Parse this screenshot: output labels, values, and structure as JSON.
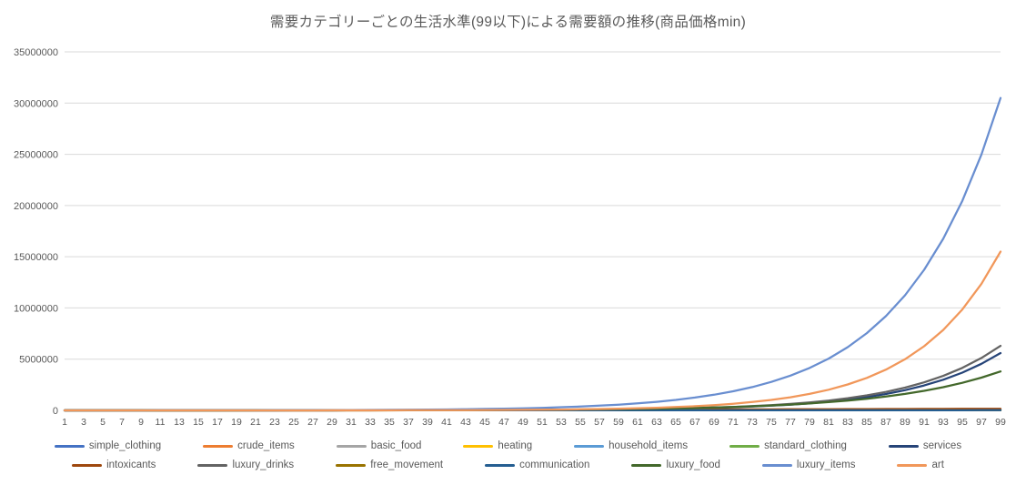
{
  "title": "需要カテゴリーごとの生活水準(99以下)による需要額の推移(商品価格min)",
  "colors": {
    "background": "#ffffff",
    "title_text": "#595959",
    "axis_text": "#595959",
    "gridline": "#d9d9d9",
    "axis_line": "#bfbfbf"
  },
  "chart_data": {
    "type": "line",
    "title": "需要カテゴリーごとの生活水準(99以下)による需要額の推移(商品価格min)",
    "xlabel": "",
    "ylabel": "",
    "ylim": [
      0,
      35000000
    ],
    "yticks": [
      0,
      5000000,
      10000000,
      15000000,
      20000000,
      25000000,
      30000000,
      35000000
    ],
    "grid": "horizontal",
    "legend_position": "bottom-two-rows",
    "x": [
      1,
      3,
      5,
      7,
      9,
      11,
      13,
      15,
      17,
      19,
      21,
      23,
      25,
      27,
      29,
      31,
      33,
      35,
      37,
      39,
      41,
      43,
      45,
      47,
      49,
      51,
      53,
      55,
      57,
      59,
      61,
      63,
      65,
      67,
      69,
      71,
      73,
      75,
      77,
      79,
      81,
      83,
      85,
      87,
      89,
      91,
      93,
      95,
      97,
      99
    ],
    "series": [
      {
        "name": "simple_clothing",
        "color": "#4472C4",
        "legend_row": 1,
        "values": [
          2000,
          2500,
          3000,
          3500,
          4000,
          4500,
          5000,
          5500,
          6000,
          6500,
          7000,
          7500,
          8000,
          8500,
          9000,
          9500,
          10000,
          10500,
          11000,
          11500,
          12000,
          12500,
          13000,
          13500,
          14000,
          14500,
          15000,
          15500,
          16000,
          16500,
          17000,
          17500,
          18000,
          18500,
          19000,
          19500,
          20000,
          20500,
          21000,
          21500,
          22000,
          22500,
          23000,
          23500,
          24000,
          24500,
          25000,
          25500,
          26000,
          26500
        ]
      },
      {
        "name": "crude_items",
        "color": "#ED7D31",
        "legend_row": 1,
        "values": [
          1000,
          1400,
          1800,
          2200,
          2600,
          3000,
          3400,
          3800,
          4200,
          4600,
          5000,
          5400,
          5800,
          6200,
          6600,
          7000,
          7400,
          7800,
          8200,
          8600,
          9000,
          9400,
          9800,
          10200,
          10600,
          11000,
          11400,
          11800,
          12200,
          12600,
          13000,
          13400,
          13800,
          14200,
          14600,
          15000,
          15400,
          15800,
          16200,
          16600,
          17000,
          17400,
          17800,
          18200,
          18600,
          19000,
          19400,
          19800,
          20200,
          20600
        ]
      },
      {
        "name": "basic_food",
        "color": "#A5A5A5",
        "legend_row": 1,
        "values": [
          3000,
          3500,
          4000,
          4500,
          5000,
          5500,
          6000,
          6500,
          7000,
          7500,
          8000,
          8500,
          9000,
          9500,
          10000,
          10500,
          11000,
          11500,
          12000,
          12500,
          13000,
          13500,
          14000,
          14500,
          15000,
          15500,
          16000,
          16500,
          17000,
          17500,
          18000,
          18500,
          19000,
          19500,
          20000,
          20500,
          21000,
          21500,
          22000,
          22500,
          23000,
          23500,
          24000,
          24500,
          25000,
          25500,
          26000,
          26500,
          27000,
          27500
        ]
      },
      {
        "name": "heating",
        "color": "#FFC000",
        "legend_row": 1,
        "values": [
          1000,
          1300,
          1600,
          1900,
          2200,
          2500,
          2800,
          3100,
          3400,
          3700,
          4000,
          4300,
          4600,
          4900,
          5200,
          5500,
          5800,
          6100,
          6400,
          6700,
          7000,
          7300,
          7600,
          7900,
          8200,
          8500,
          8800,
          9100,
          9400,
          9700,
          10000,
          10300,
          10600,
          10900,
          11200,
          11500,
          11800,
          12100,
          12400,
          12700,
          13000,
          13300,
          13600,
          13900,
          14200,
          14500,
          14800,
          15100,
          15400,
          15700
        ]
      },
      {
        "name": "household_items",
        "color": "#5B9BD5",
        "legend_row": 1,
        "values": [
          2000,
          2400,
          2800,
          3200,
          3600,
          4000,
          4400,
          4800,
          5200,
          5600,
          6000,
          6400,
          6800,
          7200,
          7600,
          8000,
          8400,
          8800,
          9200,
          9600,
          10000,
          10400,
          10800,
          11200,
          11600,
          12000,
          12400,
          12800,
          13200,
          13600,
          14000,
          14400,
          14800,
          15200,
          15600,
          16000,
          16400,
          16800,
          17200,
          17600,
          18000,
          18400,
          18800,
          19200,
          19600,
          20000,
          20400,
          20800,
          21200,
          21600
        ]
      },
      {
        "name": "standard_clothing",
        "color": "#70AD47",
        "legend_row": 1,
        "values": [
          2000,
          2300,
          2600,
          2900,
          3200,
          3500,
          3800,
          4100,
          4400,
          4700,
          5000,
          5300,
          5600,
          5900,
          6200,
          6500,
          6800,
          7100,
          7400,
          7700,
          8000,
          8300,
          8600,
          8900,
          9200,
          9500,
          9800,
          10100,
          10400,
          10700,
          11000,
          11300,
          11600,
          11900,
          12200,
          12500,
          12800,
          13100,
          13400,
          13700,
          14000,
          14300,
          14600,
          14900,
          15200,
          15500,
          15800,
          16100,
          16400,
          16700
        ]
      },
      {
        "name": "services",
        "color": "#264478",
        "legend_row": 1,
        "values": [
          0,
          0,
          0,
          0,
          0,
          1000,
          1000,
          1000,
          1000,
          1000,
          2000,
          2000,
          2000,
          3000,
          4000,
          5000,
          6000,
          7000,
          9000,
          11000,
          13000,
          16000,
          20000,
          25000,
          30000,
          37000,
          46000,
          57000,
          70000,
          86000,
          106000,
          131000,
          161000,
          199000,
          245000,
          301000,
          371000,
          458000,
          564000,
          695000,
          856000,
          1054000,
          1299000,
          1601000,
          1972000,
          2430000,
          2994000,
          3689000,
          4545000,
          5600000
        ]
      },
      {
        "name": "intoxicants",
        "color": "#9E480E",
        "legend_row": 2,
        "values": [
          1000,
          1000,
          1000,
          1000,
          1000,
          1000,
          1000,
          1000,
          1000,
          1000,
          1000,
          1000,
          1000,
          1000,
          1000,
          1000,
          1000,
          5000,
          10000,
          14000,
          19000,
          24000,
          29000,
          34000,
          38000,
          43000,
          48000,
          53000,
          58000,
          62000,
          67000,
          72000,
          77000,
          82000,
          86000,
          91000,
          96000,
          101000,
          106000,
          110000,
          115000,
          120000,
          125000,
          130000,
          134000,
          139000,
          144000,
          149000,
          154000,
          158000
        ]
      },
      {
        "name": "luxury_drinks",
        "color": "#636363",
        "legend_row": 2,
        "values": [
          0,
          0,
          0,
          0,
          1000,
          1000,
          1000,
          1000,
          1000,
          1000,
          2000,
          2000,
          3000,
          3000,
          4000,
          5000,
          6000,
          8000,
          10000,
          12000,
          15000,
          18000,
          22000,
          28000,
          34000,
          42000,
          52000,
          64000,
          79000,
          97000,
          119000,
          147000,
          181000,
          223000,
          275000,
          339000,
          418000,
          515000,
          634000,
          781000,
          963000,
          1186000,
          1462000,
          1801000,
          2219000,
          2734000,
          3368000,
          4150000,
          5113000,
          6300000
        ]
      },
      {
        "name": "free_movement",
        "color": "#997300",
        "legend_row": 2,
        "values": [
          1000,
          1200,
          1400,
          1600,
          1800,
          2000,
          2200,
          2400,
          2600,
          2800,
          3000,
          3200,
          3400,
          3600,
          3800,
          4000,
          4200,
          4400,
          4600,
          4800,
          5000,
          5200,
          5400,
          5600,
          5800,
          6000,
          6200,
          6400,
          6600,
          6800,
          7000,
          7200,
          7400,
          7600,
          7800,
          8000,
          8200,
          8400,
          8600,
          8800,
          9000,
          9200,
          9400,
          9600,
          9800,
          10000,
          10200,
          10400,
          10600,
          10800
        ]
      },
      {
        "name": "communication",
        "color": "#255E91",
        "legend_row": 2,
        "values": [
          1500,
          1750,
          2000,
          2250,
          2500,
          2750,
          3000,
          3250,
          3500,
          3750,
          4000,
          4250,
          4500,
          4750,
          5000,
          5250,
          5500,
          5750,
          6000,
          6250,
          6500,
          6750,
          7000,
          7250,
          7500,
          7750,
          8000,
          8250,
          8500,
          8750,
          9000,
          9250,
          9500,
          9750,
          10000,
          10250,
          10500,
          10750,
          11000,
          11250,
          11500,
          11750,
          12000,
          12250,
          12500,
          12750,
          13000,
          13250,
          13500,
          13750
        ]
      },
      {
        "name": "luxury_food",
        "color": "#43682B",
        "legend_row": 2,
        "values": [
          1000,
          1000,
          1000,
          1000,
          2000,
          2000,
          2000,
          3000,
          3000,
          4000,
          5000,
          5000,
          6000,
          8000,
          9000,
          11000,
          13000,
          15000,
          18000,
          22000,
          26000,
          30000,
          36000,
          43000,
          51000,
          61000,
          72000,
          86000,
          102000,
          121000,
          144000,
          171000,
          203000,
          241000,
          286000,
          340000,
          404000,
          480000,
          570000,
          678000,
          805000,
          957000,
          1137000,
          1351000,
          1605000,
          1907000,
          2266000,
          2692000,
          3198000,
          3800000
        ]
      },
      {
        "name": "luxury_items",
        "color": "#698ED0",
        "legend_row": 2,
        "values": [
          2000,
          2000,
          3000,
          3000,
          4000,
          5000,
          6000,
          7000,
          8000,
          10000,
          13000,
          15000,
          19000,
          23000,
          28000,
          34000,
          42000,
          51000,
          62000,
          76000,
          93000,
          114000,
          139000,
          170000,
          207000,
          253000,
          309000,
          377000,
          460000,
          562000,
          686000,
          838000,
          1023000,
          1249000,
          1526000,
          1863000,
          2275000,
          2777000,
          3391000,
          4141000,
          5056000,
          6173000,
          7538000,
          9204000,
          11238000,
          13722000,
          16755000,
          20458000,
          24979000,
          30500000
        ]
      },
      {
        "name": "art",
        "color": "#F1975A",
        "legend_row": 2,
        "values": [
          0,
          0,
          0,
          0,
          1000,
          1000,
          1000,
          1000,
          1000,
          2000,
          2000,
          3000,
          4000,
          4000,
          6000,
          7000,
          9000,
          11000,
          14000,
          17000,
          22000,
          27000,
          34000,
          43000,
          54000,
          67000,
          84000,
          106000,
          133000,
          167000,
          209000,
          262000,
          329000,
          413000,
          518000,
          649000,
          814000,
          1021000,
          1281000,
          1607000,
          2016000,
          2529000,
          3172000,
          3979000,
          4991000,
          6260000,
          7853000,
          9850000,
          12357000,
          15500000
        ]
      }
    ]
  }
}
